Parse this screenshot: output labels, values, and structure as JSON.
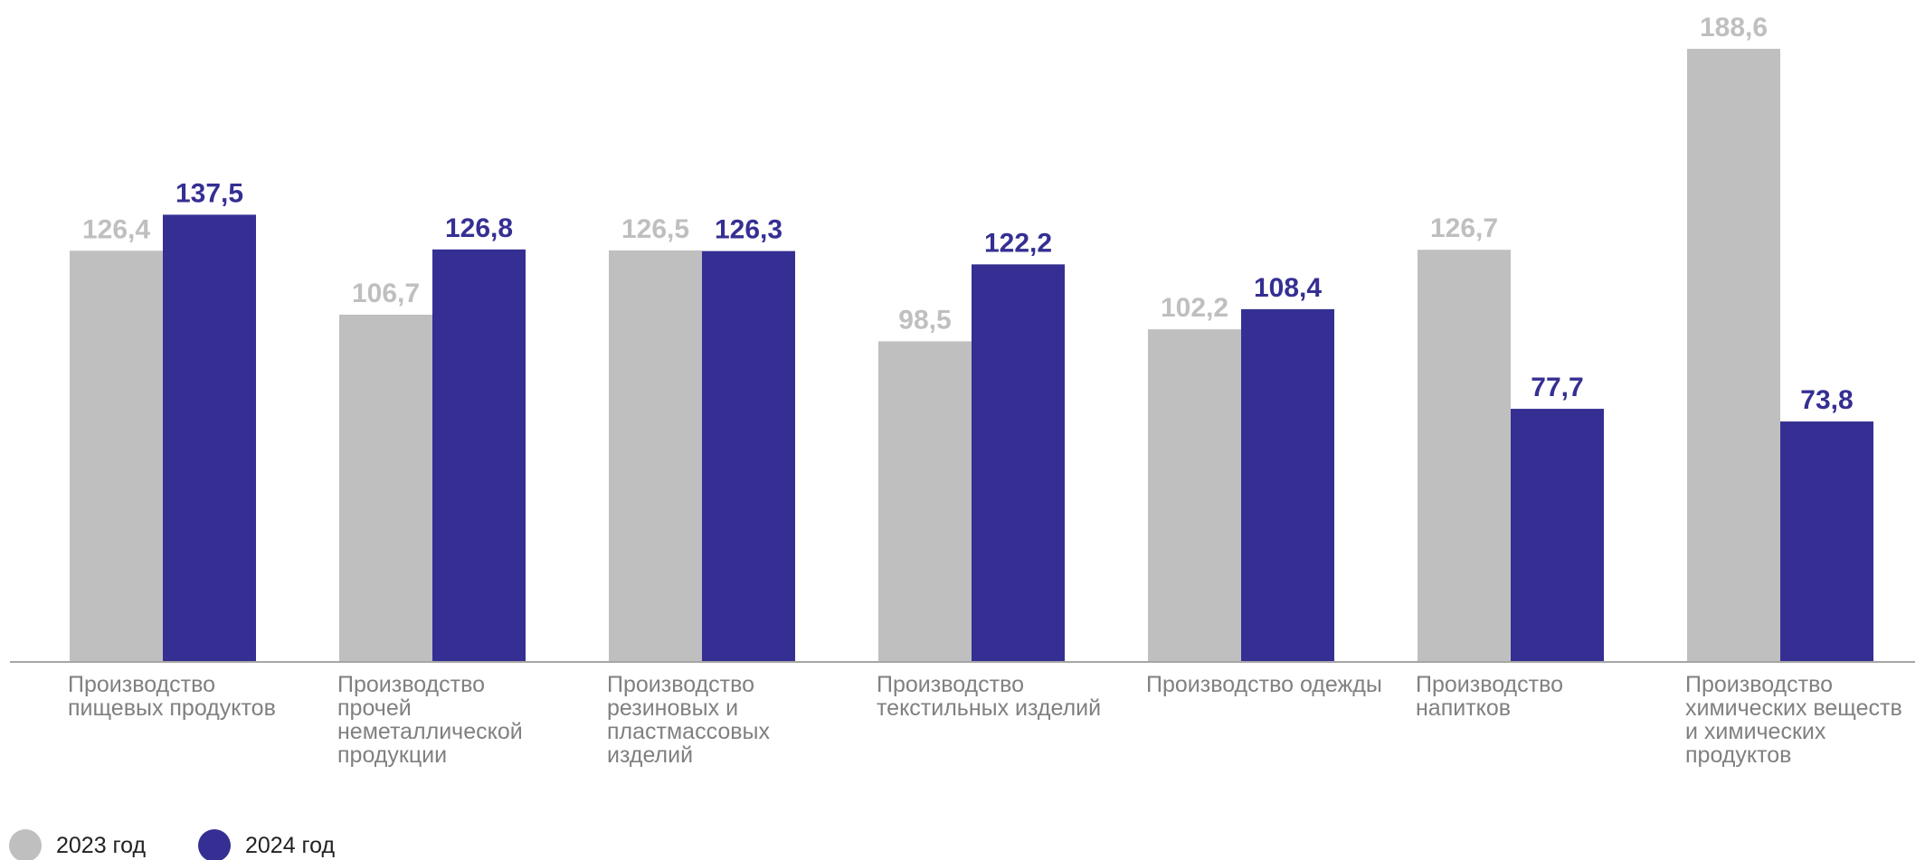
{
  "chart_data": {
    "type": "bar",
    "categories": [
      "Производство\nпищевых продуктов",
      "Производство\nпрочей\nнеметаллической\nпродукции",
      "Производство\nрезиновых и\nпластмассовых\nизделий",
      "Производство\nтекстильных изделий",
      "Производство одежды",
      "Производство\nнапитков",
      "Производство\nхимических веществ\nи химических\nпродуктов"
    ],
    "series": [
      {
        "name": "2023 год",
        "color": "#bfbfbf",
        "values": [
          126.4,
          106.7,
          126.5,
          98.5,
          102.2,
          126.7,
          188.6
        ],
        "value_labels": [
          "126,4",
          "106,7",
          "126,5",
          "98,5",
          "102,2",
          "126,7",
          "188,6"
        ]
      },
      {
        "name": "2024 год",
        "color": "#352f93",
        "values": [
          137.5,
          126.8,
          126.3,
          122.2,
          108.4,
          77.7,
          73.8
        ],
        "value_labels": [
          "137,5",
          "126,8",
          "126,3",
          "122,2",
          "108,4",
          "77,7",
          "73,8"
        ]
      }
    ],
    "legend": "bottom-left"
  }
}
